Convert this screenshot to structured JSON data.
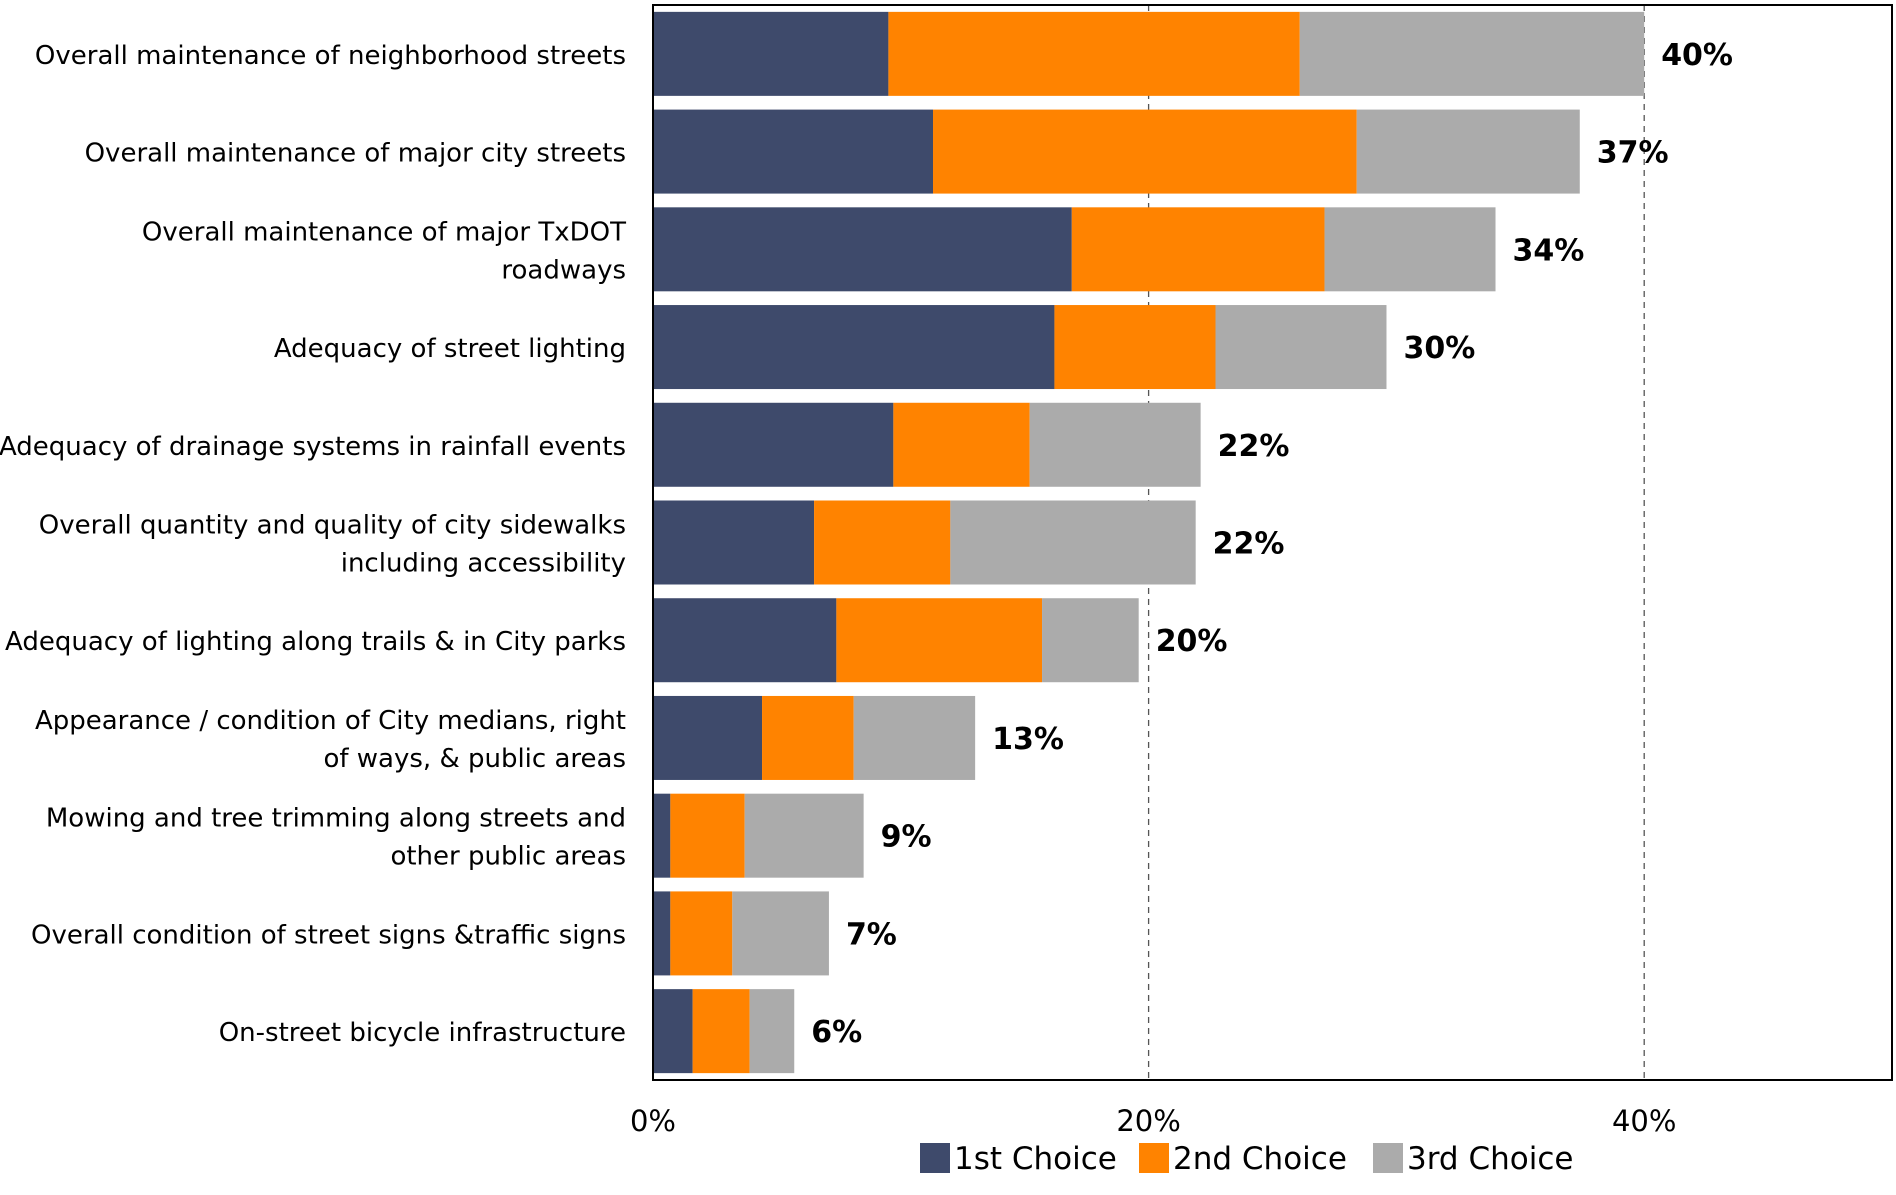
{
  "chart_data": {
    "type": "bar",
    "orientation": "horizontal",
    "stacked": true,
    "title": "",
    "xlabel": "",
    "ylabel": "",
    "xlim": [
      0,
      50
    ],
    "x_ticks": [
      0,
      20,
      40
    ],
    "x_tick_labels": [
      "0%",
      "20%",
      "40%"
    ],
    "grid": "vertical dashed",
    "legend_position": "bottom",
    "categories": [
      [
        "Overall maintenance of neighborhood streets"
      ],
      [
        "Overall maintenance of major city streets"
      ],
      [
        "Overall maintenance of major TxDOT",
        "roadways"
      ],
      [
        "Adequacy of street lighting"
      ],
      [
        "Adequacy of drainage systems in rainfall events"
      ],
      [
        "Overall quantity and quality of city sidewalks",
        "including accessibility"
      ],
      [
        "Adequacy of lighting along trails & in City parks"
      ],
      [
        "Appearance / condition of City medians, right",
        "of ways, & public areas"
      ],
      [
        "Mowing and tree trimming along streets and",
        "other public areas"
      ],
      [
        "Overall condition of street signs &traffic signs"
      ],
      [
        "On-street bicycle infrastructure"
      ]
    ],
    "series": [
      {
        "name": "1st Choice",
        "color": "#3E4A6B",
        "values": [
          9.5,
          11.3,
          16.9,
          16.2,
          9.7,
          6.5,
          7.4,
          4.4,
          0.7,
          0.7,
          1.6
        ]
      },
      {
        "name": "2nd Choice",
        "color": "#FF8300",
        "values": [
          16.6,
          17.1,
          10.2,
          6.5,
          5.5,
          5.5,
          8.3,
          3.7,
          3.0,
          2.5,
          2.3
        ]
      },
      {
        "name": "3rd Choice",
        "color": "#ABABAB",
        "values": [
          13.9,
          9.0,
          6.9,
          6.9,
          6.9,
          9.9,
          3.9,
          4.9,
          4.8,
          3.9,
          1.8
        ]
      }
    ],
    "totals": [
      "40%",
      "37%",
      "34%",
      "30%",
      "22%",
      "22%",
      "20%",
      "13%",
      "9%",
      "7%",
      "6%"
    ]
  }
}
